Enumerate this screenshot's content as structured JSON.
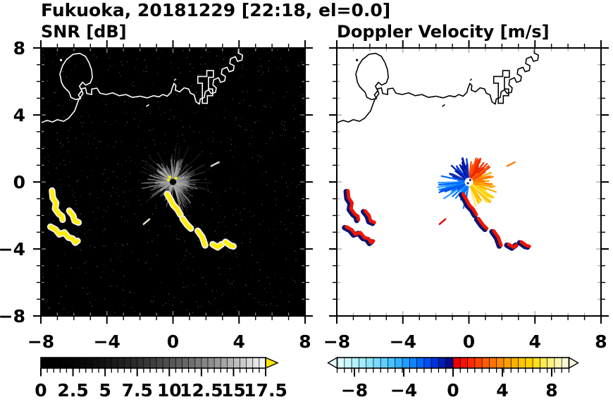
{
  "title": "Fukuoka, 20181229 [22:18, el=0.0]",
  "panels": {
    "snr": {
      "label": "SNR [dB]",
      "background": "#000000",
      "coast_color": "#ffffff"
    },
    "velocity": {
      "label": "Doppler Velocity [m/s]",
      "background": "#ffffff",
      "coast_color": "#000000"
    }
  },
  "axes": {
    "xlim": [
      -8,
      8
    ],
    "ylim": [
      -8,
      8
    ],
    "major_ticks": [
      -8,
      -4,
      0,
      4,
      8
    ],
    "minor_step": 1,
    "xtick_labels": [
      "−8",
      "−4",
      "0",
      "4",
      "8"
    ],
    "ytick_labels": [
      "8",
      "4",
      "0",
      "−4",
      "−8"
    ],
    "ytick_values": [
      8,
      4,
      0,
      -4,
      -8
    ]
  },
  "colorbars": {
    "snr": {
      "range": [
        0,
        17.5
      ],
      "segment_step": 0.5,
      "major_values": [
        0,
        2.5,
        5,
        7.5,
        10,
        12.5,
        15,
        17.5
      ],
      "tick_labels": [
        "0",
        "2.5",
        "5",
        "7.5",
        "10",
        "12.5",
        "15",
        "17.5"
      ],
      "segment_colors": [
        "#000000",
        "#000000",
        "#010101",
        "#030303",
        "#040404",
        "#060606",
        "#090909",
        "#0b0b0b",
        "#0f0f0f",
        "#121212",
        "#161616",
        "#1b1b1b",
        "#202020",
        "#252525",
        "#2b2b2b",
        "#313131",
        "#383838",
        "#3e3e3e",
        "#464646",
        "#4e4e4e",
        "#565656",
        "#5e5e5e",
        "#676767",
        "#707070",
        "#7a7a7a",
        "#858585",
        "#8f8f8f",
        "#9a9a9a",
        "#a6a6a6",
        "#b2b2b2",
        "#bebebe",
        "#cacaca",
        "#d8d8d8",
        "#e5e5e5",
        "#f3f3f3"
      ],
      "over_arrow_color": "#ffe800"
    },
    "velocity": {
      "range": [
        -9.4,
        9.4
      ],
      "major_values": [
        -8,
        -4,
        0,
        4,
        8
      ],
      "tick_labels": [
        "−8",
        "−4",
        "0",
        "4",
        "8"
      ],
      "segment_colors": [
        "#dcfcff",
        "#c9f7ff",
        "#b5f1ff",
        "#a1ebff",
        "#8ce3ff",
        "#76daff",
        "#60cfff",
        "#4ac1ff",
        "#35b0ff",
        "#219cff",
        "#0e85ff",
        "#006aff",
        "#004df4",
        "#0033da",
        "#001db4",
        "#000d8a",
        "#e90000",
        "#f61300",
        "#ff2b00",
        "#ff4400",
        "#ff5d00",
        "#ff7500",
        "#ff8a00",
        "#ff9e00",
        "#ffb100",
        "#ffc300",
        "#ffd300",
        "#ffe020",
        "#ffe952",
        "#fff184",
        "#fff7b0",
        "#fbf7d5"
      ],
      "under_arrow_color": "#eafeff",
      "over_arrow_color": "#fdfbe2"
    }
  },
  "chart_data": {
    "type": "heatmap",
    "title": "Fukuoka, 20181229 [22:18, el=0.0]",
    "subplots": [
      "SNR [dB]",
      "Doppler Velocity [m/s]"
    ],
    "xlabel": "",
    "ylabel": "",
    "xlim": [
      -8,
      8
    ],
    "ylim": [
      -8,
      8
    ],
    "radar_center": [
      0,
      0
    ],
    "coast_island": [
      [
        -6.45,
        5.52
      ],
      [
        -6.62,
        5.7
      ],
      [
        -6.75,
        5.95
      ],
      [
        -6.85,
        6.45
      ],
      [
        -6.68,
        6.95
      ],
      [
        -6.45,
        7.3
      ],
      [
        -6.05,
        7.62
      ],
      [
        -5.65,
        7.68
      ],
      [
        -5.3,
        7.5
      ],
      [
        -5.08,
        7.12
      ],
      [
        -4.93,
        6.7
      ],
      [
        -4.88,
        6.25
      ],
      [
        -5.0,
        5.92
      ],
      [
        -5.28,
        5.78
      ],
      [
        -5.48,
        5.95
      ],
      [
        -5.66,
        5.72
      ],
      [
        -5.52,
        5.45
      ],
      [
        -5.72,
        5.2
      ],
      [
        -5.6,
        4.98
      ],
      [
        -5.9,
        4.92
      ],
      [
        -6.18,
        5.05
      ],
      [
        -6.28,
        5.35
      ]
    ],
    "coast_mainland": [
      [
        -8.2,
        3.45
      ],
      [
        -7.62,
        3.68
      ],
      [
        -7.3,
        3.58
      ],
      [
        -7.0,
        3.72
      ],
      [
        -6.62,
        3.62
      ],
      [
        -6.3,
        3.82
      ],
      [
        -5.95,
        4.25
      ],
      [
        -5.72,
        4.88
      ],
      [
        -5.45,
        5.28
      ],
      [
        -5.56,
        5.55
      ],
      [
        -5.3,
        5.62
      ],
      [
        -5.22,
        5.28
      ],
      [
        -4.92,
        5.22
      ],
      [
        -4.92,
        5.55
      ],
      [
        -4.6,
        5.6
      ],
      [
        -4.42,
        5.3
      ],
      [
        -4.05,
        5.22
      ],
      [
        -3.65,
        5.32
      ],
      [
        -3.25,
        5.15
      ],
      [
        -2.85,
        5.22
      ],
      [
        -2.45,
        5.05
      ],
      [
        -2.0,
        5.12
      ],
      [
        -1.55,
        5.02
      ],
      [
        -1.18,
        5.15
      ],
      [
        -0.85,
        5.08
      ],
      [
        -0.62,
        5.22
      ],
      [
        -0.35,
        5.12
      ],
      [
        -0.12,
        5.35
      ],
      [
        -0.05,
        5.6
      ],
      [
        0.06,
        5.88
      ],
      [
        0.18,
        5.75
      ],
      [
        0.14,
        5.48
      ],
      [
        0.4,
        5.38
      ],
      [
        0.68,
        5.62
      ],
      [
        0.95,
        5.55
      ],
      [
        1.05,
        5.3
      ],
      [
        1.28,
        5.2
      ],
      [
        1.4,
        4.78
      ],
      [
        1.6,
        4.65
      ],
      [
        1.65,
        4.95
      ],
      [
        1.9,
        5.05
      ],
      [
        1.95,
        5.38
      ],
      [
        2.15,
        5.5
      ],
      [
        2.32,
        5.28
      ],
      [
        2.58,
        5.35
      ],
      [
        2.62,
        5.62
      ],
      [
        2.42,
        5.8
      ],
      [
        2.46,
        6.1
      ],
      [
        2.76,
        6.22
      ],
      [
        2.88,
        5.95
      ],
      [
        3.13,
        6.03
      ],
      [
        3.18,
        6.3
      ],
      [
        2.93,
        6.44
      ],
      [
        2.97,
        6.73
      ],
      [
        3.27,
        6.85
      ],
      [
        3.4,
        6.58
      ],
      [
        3.66,
        6.66
      ],
      [
        3.7,
        6.94
      ],
      [
        3.44,
        7.07
      ],
      [
        3.48,
        7.36
      ],
      [
        3.78,
        7.48
      ],
      [
        3.91,
        7.2
      ],
      [
        4.17,
        7.28
      ],
      [
        4.21,
        7.57
      ],
      [
        3.95,
        7.7
      ],
      [
        4.0,
        8.2
      ]
    ],
    "coast_pier": [
      [
        1.78,
        4.7
      ],
      [
        1.78,
        5.9
      ],
      [
        1.5,
        5.9
      ],
      [
        1.5,
        6.3
      ],
      [
        2.05,
        6.3
      ],
      [
        2.05,
        6.65
      ],
      [
        2.45,
        6.65
      ],
      [
        2.45,
        6.25
      ],
      [
        2.15,
        6.25
      ],
      [
        2.15,
        5.55
      ],
      [
        2.4,
        5.55
      ],
      [
        2.4,
        5.15
      ],
      [
        2.08,
        5.15
      ],
      [
        2.08,
        4.7
      ]
    ],
    "islets": [
      {
        "a": [
          -1.62,
          4.5
        ],
        "b": [
          -1.45,
          4.62
        ]
      },
      {
        "a": [
          0.08,
          6.05
        ],
        "b": [
          0.16,
          6.16
        ]
      }
    ],
    "west_islet_dot": [
      -6.78,
      7.28
    ],
    "ray_sectors": [
      {
        "from": -75,
        "to": -20,
        "count": 34,
        "rmin": 0.5,
        "rmax": 1.9,
        "vel": [
          "#ffc400",
          "#ffd400",
          "#ffb000",
          "#ffe566"
        ]
      },
      {
        "from": -20,
        "to": 25,
        "count": 26,
        "rmin": 0.4,
        "rmax": 1.6,
        "vel": [
          "#ff9000",
          "#ff7c00",
          "#ffa800"
        ]
      },
      {
        "from": 25,
        "to": 95,
        "count": 38,
        "rmin": 0.4,
        "rmax": 1.6,
        "vel": [
          "#ff4e00",
          "#ff3300",
          "#ff6600",
          "#e82800"
        ]
      },
      {
        "from": 95,
        "to": 165,
        "count": 30,
        "rmin": 0.35,
        "rmax": 1.5,
        "vel": [
          "#0026c8",
          "#0016a0",
          "#0038e0",
          "#1530b4"
        ]
      },
      {
        "from": 165,
        "to": 215,
        "count": 22,
        "rmin": 0.5,
        "rmax": 2.1,
        "vel": [
          "#0066ff",
          "#0080ff",
          "#0052f0",
          "#2e9cff"
        ]
      },
      {
        "from": 215,
        "to": 262,
        "count": 12,
        "rmin": 0.4,
        "rmax": 1.7,
        "vel": [
          "#0070ff",
          "#1b8cff"
        ]
      }
    ],
    "snr_ray_grays": [
      "#777777",
      "#909090",
      "#a8a8a8",
      "#bfbfbf",
      "#d5d5d5"
    ],
    "echo_chains": [
      [
        [
          -7.32,
          -0.52
        ],
        [
          -7.28,
          -0.95
        ],
        [
          -7.08,
          -1.25
        ],
        [
          -7.14,
          -1.6
        ],
        [
          -6.92,
          -1.9
        ],
        [
          -6.72,
          -2.05
        ],
        [
          -6.68,
          -2.25
        ]
      ],
      [
        [
          -6.28,
          -1.72
        ],
        [
          -6.05,
          -2.0
        ],
        [
          -5.95,
          -2.32
        ],
        [
          -5.72,
          -2.42
        ]
      ],
      [
        [
          -7.42,
          -2.68
        ],
        [
          -7.1,
          -2.85
        ],
        [
          -6.88,
          -3.12
        ],
        [
          -6.58,
          -3.02
        ],
        [
          -6.32,
          -3.32
        ],
        [
          -6.08,
          -3.38
        ],
        [
          -5.92,
          -3.62
        ],
        [
          -5.78,
          -3.52
        ]
      ],
      [
        [
          -0.35,
          -0.72
        ],
        [
          -0.15,
          -1.05
        ],
        [
          0.02,
          -1.38
        ],
        [
          0.26,
          -1.62
        ],
        [
          0.45,
          -1.95
        ]
      ],
      [
        [
          0.58,
          -2.18
        ],
        [
          0.85,
          -2.55
        ],
        [
          1.08,
          -2.78
        ]
      ],
      [
        [
          1.5,
          -2.92
        ],
        [
          1.78,
          -3.3
        ],
        [
          1.95,
          -3.78
        ]
      ],
      [
        [
          2.4,
          -3.72
        ],
        [
          2.7,
          -3.9
        ],
        [
          2.95,
          -3.72
        ]
      ],
      [
        [
          3.18,
          -3.58
        ],
        [
          3.5,
          -3.8
        ],
        [
          3.66,
          -3.84
        ]
      ]
    ],
    "chain_style": {
      "snr": {
        "under": "#efefef",
        "under_w": 9.5,
        "over": "#ffee00",
        "over_w": 5.5
      },
      "velocity": {
        "under": "#0a1470",
        "under_w": 7.5,
        "over": "#ee1500",
        "over_w": 4.8,
        "under_dx": -2.6,
        "under_dy": 1.2
      }
    },
    "dashes": [
      {
        "a": [
          2.32,
          0.95
        ],
        "b": [
          2.78,
          1.18
        ],
        "snr": "#d8d8d8",
        "vel": "#ff7a00"
      },
      {
        "a": [
          -1.78,
          -2.52
        ],
        "b": [
          -1.42,
          -2.22
        ],
        "snr": "#e8e8d0",
        "vel": "#e60000"
      }
    ],
    "center_snr": {
      "disk_color": "#000000",
      "disk_r": 4.5,
      "specks": [
        [
          -0.28,
          0.12
        ],
        [
          -0.2,
          0.3
        ],
        [
          0.18,
          0.22
        ]
      ],
      "speck_color": "#ffee00"
    },
    "center_velocity": {
      "disk_color": "#ffffff",
      "disk_r": 6,
      "dots": [
        [
          0.08,
          0.12
        ],
        [
          -0.06,
          -0.08
        ]
      ],
      "dot_color": "#202060"
    },
    "noise": {
      "count": 700,
      "bright_count": 120,
      "colors": [
        "#1d1d1d",
        "#2a2a2a",
        "#383838",
        "#4f4f4f"
      ],
      "bright_color": "#5a5a5a"
    }
  }
}
